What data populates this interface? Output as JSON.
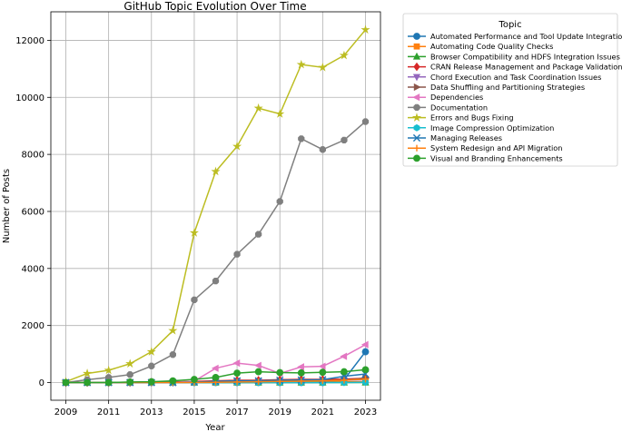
{
  "chart_data": {
    "type": "line",
    "title": "GitHub Topic Evolution Over Time",
    "xlabel": "Year",
    "ylabel": "Number of Posts",
    "x": [
      2009,
      2010,
      2011,
      2012,
      2013,
      2014,
      2015,
      2016,
      2017,
      2018,
      2019,
      2020,
      2021,
      2022,
      2023
    ],
    "xticks": [
      "2009",
      "2011",
      "2013",
      "2015",
      "2017",
      "2019",
      "2021",
      "2023"
    ],
    "yticks": [
      "0",
      "2000",
      "4000",
      "6000",
      "8000",
      "10000",
      "12000"
    ],
    "xlim": [
      2008.3,
      2023.7
    ],
    "ylim": [
      -620,
      13000
    ],
    "grid": true,
    "legend_title": "Topic",
    "legend_placement": "outside-right-top",
    "series": [
      {
        "name": "Automated Performance and Tool Update Integration",
        "color": "#1f77b4",
        "marker": "circle",
        "values": [
          0,
          0,
          0,
          0,
          0,
          0,
          0,
          0,
          0,
          0,
          0,
          0,
          0,
          100,
          1080
        ]
      },
      {
        "name": "Automating Code Quality Checks",
        "color": "#ff7f0e",
        "marker": "square",
        "values": [
          0,
          0,
          0,
          0,
          0,
          0,
          5,
          10,
          15,
          15,
          20,
          20,
          20,
          25,
          30
        ]
      },
      {
        "name": "Browser Compatibility and HDFS Integration Issues",
        "color": "#2ca02c",
        "marker": "triangle-up",
        "values": [
          0,
          0,
          0,
          0,
          0,
          0,
          0,
          0,
          0,
          0,
          0,
          0,
          0,
          0,
          0
        ]
      },
      {
        "name": "CRAN Release Management and Package Validation",
        "color": "#d62728",
        "marker": "diamond",
        "values": [
          0,
          0,
          0,
          0,
          10,
          20,
          40,
          60,
          80,
          80,
          100,
          110,
          110,
          120,
          150
        ]
      },
      {
        "name": "Chord Execution and Task Coordination Issues",
        "color": "#9467bd",
        "marker": "triangle-down",
        "values": [
          0,
          0,
          0,
          0,
          0,
          0,
          10,
          20,
          30,
          30,
          40,
          50,
          60,
          80,
          100
        ]
      },
      {
        "name": "Data Shuffling and Partitioning Strategies",
        "color": "#8c564b",
        "marker": "triangle-right",
        "values": [
          0,
          0,
          0,
          0,
          0,
          0,
          10,
          20,
          30,
          40,
          50,
          60,
          70,
          80,
          160
        ]
      },
      {
        "name": "Dependencies",
        "color": "#e377c2",
        "marker": "triangle-left",
        "values": [
          0,
          0,
          0,
          0,
          0,
          0,
          50,
          500,
          680,
          600,
          320,
          550,
          570,
          920,
          1330
        ]
      },
      {
        "name": "Documentation",
        "color": "#7f7f7f",
        "marker": "octagon",
        "values": [
          0,
          100,
          180,
          280,
          580,
          980,
          2900,
          3560,
          4500,
          5200,
          6350,
          8550,
          8170,
          8500,
          9150
        ]
      },
      {
        "name": "Errors and Bugs Fixing",
        "color": "#bcbd22",
        "marker": "star",
        "values": [
          30,
          320,
          430,
          660,
          1080,
          1820,
          5250,
          7400,
          8280,
          9620,
          9420,
          11150,
          11050,
          11470,
          12370
        ]
      },
      {
        "name": "Image Compression Optimization",
        "color": "#17becf",
        "marker": "hexagon",
        "values": [
          0,
          0,
          0,
          0,
          0,
          0,
          0,
          0,
          0,
          0,
          0,
          0,
          0,
          0,
          10
        ]
      },
      {
        "name": "Managing Releases",
        "color": "#1f77b4",
        "marker": "x",
        "values": [
          0,
          0,
          0,
          0,
          0,
          0,
          20,
          40,
          60,
          60,
          80,
          90,
          100,
          220,
          300
        ]
      },
      {
        "name": "System Redesign and API Migration",
        "color": "#ff7f0e",
        "marker": "plus",
        "values": [
          0,
          0,
          0,
          0,
          0,
          0,
          5,
          10,
          20,
          30,
          40,
          50,
          60,
          80,
          120
        ]
      },
      {
        "name": "Visual and Branding Enhancements",
        "color": "#2ca02c",
        "marker": "circle",
        "values": [
          0,
          0,
          0,
          20,
          30,
          60,
          110,
          180,
          330,
          380,
          350,
          340,
          360,
          380,
          450
        ]
      }
    ]
  }
}
